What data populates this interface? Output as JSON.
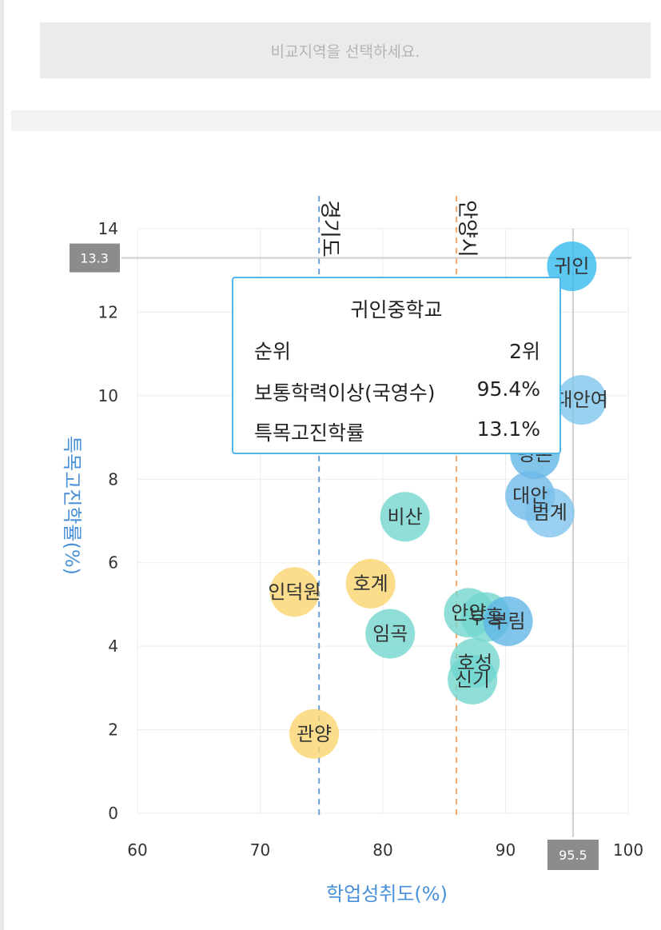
{
  "select_placeholder": "비교지역을 선택하세요.",
  "chart_data": {
    "type": "scatter",
    "xlabel": "학업성취도(%)",
    "ylabel": "특목고진학률(%)",
    "xlim": [
      60,
      100
    ],
    "ylim": [
      0,
      14
    ],
    "xticks": [
      60,
      70,
      80,
      90,
      100
    ],
    "yticks": [
      0,
      2,
      4,
      6,
      8,
      10,
      12,
      14
    ],
    "grid": true,
    "reference_lines": [
      {
        "name": "경기도",
        "axis": "x",
        "value": 74.8,
        "color": "#6a9fd6"
      },
      {
        "name": "안양시",
        "axis": "x",
        "value": 86.0,
        "color": "#f5a66b"
      }
    ],
    "crosshair": {
      "x": 95.5,
      "y": 13.3,
      "x_label": "95.5",
      "y_label": "13.3"
    },
    "points": [
      {
        "label": "귀인",
        "x": 95.4,
        "y": 13.1,
        "color": "#2fb9ee"
      },
      {
        "label": "대안여",
        "x": 96.2,
        "y": 9.9,
        "color": "#7cc4ec"
      },
      {
        "label": "평촌",
        "x": 92.4,
        "y": 8.6,
        "color": "#5eb5e6"
      },
      {
        "label": "대안",
        "x": 92.0,
        "y": 7.6,
        "color": "#6bb8e8"
      },
      {
        "label": "범계",
        "x": 93.6,
        "y": 7.2,
        "color": "#7cc2ec"
      },
      {
        "label": "비산",
        "x": 81.8,
        "y": 7.1,
        "color": "#6fd6cd"
      },
      {
        "label": "인덕원",
        "x": 72.8,
        "y": 5.3,
        "color": "#fbd36b"
      },
      {
        "label": "호계",
        "x": 79.0,
        "y": 5.5,
        "color": "#fbd36b"
      },
      {
        "label": "임곡",
        "x": 80.6,
        "y": 4.3,
        "color": "#6fd6cd"
      },
      {
        "label": "안양",
        "x": 87.0,
        "y": 4.8,
        "color": "#6fd6cd"
      },
      {
        "label": "부흥",
        "x": 88.4,
        "y": 4.7,
        "color": "#6fd6cd"
      },
      {
        "label": "부림",
        "x": 90.2,
        "y": 4.6,
        "color": "#5eb5e6"
      },
      {
        "label": "호성",
        "x": 87.5,
        "y": 3.6,
        "color": "#6fd6cd"
      },
      {
        "label": "신기",
        "x": 87.3,
        "y": 3.2,
        "color": "#6fd6cd"
      },
      {
        "label": "관양",
        "x": 74.4,
        "y": 1.9,
        "color": "#fbd36b"
      }
    ]
  },
  "tooltip": {
    "title": "귀인중학교",
    "rows": [
      {
        "label": "순위",
        "value": "2위"
      },
      {
        "label": "보통학력이상(국영수)",
        "value": "95.4%"
      },
      {
        "label": "특목고진학률",
        "value": "13.1%"
      }
    ]
  }
}
